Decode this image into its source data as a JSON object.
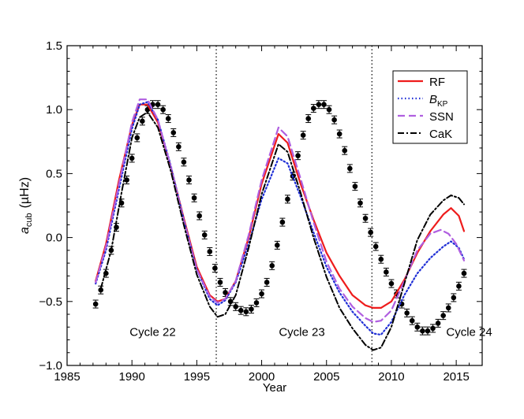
{
  "chart_data": {
    "type": "line",
    "title": "",
    "xlabel": "Year",
    "ylabel": {
      "symbol": "a",
      "subscript": "cub",
      "unit": "(µHz)"
    },
    "xlim": [
      1985,
      2017
    ],
    "ylim": [
      -1.0,
      1.5
    ],
    "xticks": [
      1985,
      1990,
      1995,
      2000,
      2005,
      2010,
      2015
    ],
    "yticks": [
      -1.0,
      -0.5,
      0.0,
      0.5,
      1.0,
      1.5
    ],
    "xtick_labels": [
      "1985",
      "1990",
      "1995",
      "2000",
      "2005",
      "2010",
      "2015"
    ],
    "ytick_labels": [
      "−1.0",
      "−0.5",
      "0.0",
      "0.5",
      "1.0",
      "1.5"
    ],
    "grid": false,
    "legend_position": "top-right",
    "legend": [
      {
        "label": "RF",
        "sub": ""
      },
      {
        "label": "B",
        "sub": "KP"
      },
      {
        "label": "SSN",
        "sub": ""
      },
      {
        "label": "CaK",
        "sub": ""
      }
    ],
    "minima_lines": [
      1996.5,
      2008.5
    ],
    "annotations": [
      {
        "text": "Cycle 22",
        "x": 1991.6,
        "y": -0.77
      },
      {
        "text": "Cycle 23",
        "x": 2003.1,
        "y": -0.77
      },
      {
        "text": "Cycle 24",
        "x": 2016.0,
        "y": -0.77
      }
    ],
    "observations": {
      "name": "",
      "x": [
        1987.2,
        1987.6,
        1988.0,
        1988.4,
        1988.8,
        1989.2,
        1989.6,
        1990.0,
        1990.4,
        1990.8,
        1991.2,
        1991.6,
        1992.0,
        1992.4,
        1992.8,
        1993.2,
        1993.6,
        1994.0,
        1994.4,
        1994.8,
        1995.2,
        1995.6,
        1996.0,
        1996.4,
        1996.8,
        1997.2,
        1997.6,
        1998.0,
        1998.4,
        1998.8,
        1999.2,
        1999.6,
        2000.0,
        2000.4,
        2000.8,
        2001.2,
        2001.6,
        2002.0,
        2002.4,
        2002.8,
        2003.2,
        2003.6,
        2004.0,
        2004.4,
        2004.8,
        2005.2,
        2005.6,
        2006.0,
        2006.4,
        2006.8,
        2007.2,
        2007.6,
        2008.0,
        2008.4,
        2008.8,
        2009.2,
        2009.6,
        2010.0,
        2010.4,
        2010.8,
        2011.2,
        2011.6,
        2012.0,
        2012.4,
        2012.8,
        2013.2,
        2013.6,
        2014.0,
        2014.4,
        2014.8,
        2015.2,
        2015.6
      ],
      "y": [
        -0.52,
        -0.41,
        -0.28,
        -0.1,
        0.08,
        0.27,
        0.45,
        0.62,
        0.78,
        0.91,
        1.0,
        1.04,
        1.04,
        1.0,
        0.93,
        0.82,
        0.71,
        0.59,
        0.45,
        0.31,
        0.17,
        0.02,
        -0.11,
        -0.24,
        -0.35,
        -0.43,
        -0.5,
        -0.54,
        -0.57,
        -0.58,
        -0.56,
        -0.51,
        -0.44,
        -0.35,
        -0.22,
        -0.06,
        0.12,
        0.3,
        0.48,
        0.64,
        0.8,
        0.93,
        1.01,
        1.04,
        1.04,
        1.0,
        0.92,
        0.81,
        0.68,
        0.54,
        0.4,
        0.27,
        0.15,
        0.04,
        -0.07,
        -0.17,
        -0.27,
        -0.36,
        -0.44,
        -0.52,
        -0.59,
        -0.65,
        -0.7,
        -0.73,
        -0.73,
        -0.71,
        -0.67,
        -0.61,
        -0.55,
        -0.47,
        -0.38,
        -0.28
      ],
      "error": 0.02
    },
    "series": [
      {
        "name": "RF",
        "color": "#ee1c1c",
        "style": "solid",
        "x": [
          1987.2,
          1988.0,
          1989.0,
          1990.0,
          1990.6,
          1991.2,
          1992.0,
          1993.0,
          1994.0,
          1995.0,
          1996.0,
          1996.6,
          1997.2,
          1998.0,
          1999.0,
          2000.0,
          2001.3,
          2002.0,
          2003.0,
          2004.0,
          2005.0,
          2006.0,
          2007.0,
          2008.0,
          2008.6,
          2009.2,
          2010.0,
          2011.0,
          2012.0,
          2013.0,
          2014.0,
          2014.6,
          2015.2,
          2015.6
        ],
        "y": [
          -0.34,
          -0.05,
          0.45,
          0.88,
          1.04,
          1.04,
          0.9,
          0.55,
          0.15,
          -0.23,
          -0.45,
          -0.5,
          -0.48,
          -0.34,
          0.0,
          0.42,
          0.81,
          0.74,
          0.42,
          0.14,
          -0.12,
          -0.3,
          -0.45,
          -0.53,
          -0.55,
          -0.55,
          -0.5,
          -0.33,
          -0.12,
          0.05,
          0.18,
          0.23,
          0.17,
          0.05
        ]
      },
      {
        "name": "B_KP",
        "color": "#1f2fd6",
        "style": "dotted",
        "x": [
          1987.2,
          1988.0,
          1989.0,
          1990.0,
          1990.6,
          1991.2,
          1992.0,
          1993.0,
          1994.0,
          1995.0,
          1996.0,
          1996.6,
          1997.2,
          1998.0,
          1999.0,
          2000.0,
          2001.3,
          2002.0,
          2003.0,
          2004.0,
          2005.0,
          2006.0,
          2007.0,
          2008.0,
          2008.6,
          2009.2,
          2010.0,
          2011.0,
          2012.0,
          2013.0,
          2014.0,
          2014.6,
          2015.2,
          2015.6
        ],
        "y": [
          -0.36,
          -0.1,
          0.38,
          0.85,
          1.04,
          1.06,
          0.92,
          0.56,
          0.14,
          -0.25,
          -0.48,
          -0.53,
          -0.49,
          -0.35,
          -0.05,
          0.3,
          0.62,
          0.58,
          0.32,
          0.04,
          -0.23,
          -0.43,
          -0.58,
          -0.69,
          -0.75,
          -0.76,
          -0.66,
          -0.45,
          -0.28,
          -0.16,
          -0.07,
          -0.03,
          -0.08,
          -0.17
        ]
      },
      {
        "name": "SSN",
        "color": "#b05fe0",
        "style": "dashed",
        "x": [
          1987.2,
          1988.0,
          1989.0,
          1990.0,
          1990.6,
          1991.2,
          1992.0,
          1993.0,
          1994.0,
          1995.0,
          1996.0,
          1996.6,
          1997.2,
          1998.0,
          1999.0,
          2000.0,
          2001.3,
          2002.0,
          2003.0,
          2004.0,
          2005.0,
          2006.0,
          2007.0,
          2008.0,
          2008.6,
          2009.2,
          2010.0,
          2011.0,
          2012.0,
          2013.0,
          2013.8,
          2014.4,
          2015.0,
          2015.6
        ],
        "y": [
          -0.35,
          -0.07,
          0.42,
          0.9,
          1.08,
          1.08,
          0.92,
          0.55,
          0.13,
          -0.25,
          -0.46,
          -0.51,
          -0.48,
          -0.34,
          0.02,
          0.45,
          0.86,
          0.79,
          0.46,
          0.12,
          -0.19,
          -0.4,
          -0.54,
          -0.63,
          -0.66,
          -0.65,
          -0.57,
          -0.34,
          -0.1,
          0.03,
          0.06,
          0.03,
          -0.05,
          -0.18
        ]
      },
      {
        "name": "CaK",
        "color": "#000000",
        "style": "dashdot",
        "x": [
          1987.6,
          1988.4,
          1989.2,
          1990.0,
          1990.6,
          1991.2,
          1992.0,
          1993.0,
          1994.0,
          1995.0,
          1996.0,
          1996.6,
          1997.2,
          1998.0,
          1999.0,
          2000.0,
          2001.3,
          2002.0,
          2003.0,
          2004.0,
          2005.0,
          2006.0,
          2007.0,
          2008.0,
          2008.6,
          2009.2,
          2010.0,
          2011.0,
          2012.0,
          2013.0,
          2014.0,
          2014.6,
          2015.2,
          2015.6
        ],
        "y": [
          -0.4,
          -0.1,
          0.35,
          0.78,
          0.94,
          0.98,
          0.86,
          0.52,
          0.1,
          -0.29,
          -0.54,
          -0.62,
          -0.6,
          -0.45,
          -0.08,
          0.34,
          0.73,
          0.67,
          0.35,
          0.0,
          -0.31,
          -0.55,
          -0.71,
          -0.84,
          -0.88,
          -0.86,
          -0.7,
          -0.36,
          -0.02,
          0.18,
          0.29,
          0.33,
          0.31,
          0.26
        ]
      }
    ]
  }
}
